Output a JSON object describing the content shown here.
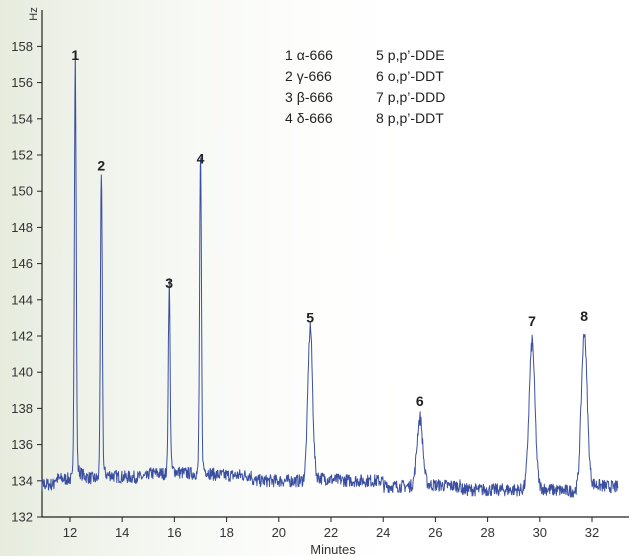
{
  "chart_data": {
    "type": "line",
    "xlabel": "Minutes",
    "ylabel": "Hz",
    "xlim": [
      10.5,
      33
    ],
    "ylim": [
      132,
      159
    ],
    "x_ticks": [
      12,
      14,
      16,
      18,
      20,
      22,
      24,
      26,
      28,
      30,
      32
    ],
    "y_ticks": [
      132,
      134,
      136,
      138,
      140,
      142,
      144,
      146,
      148,
      150,
      152,
      154,
      156,
      158
    ],
    "baseline": 134,
    "grid": false,
    "colors": {
      "trace": "#3b4fa0",
      "axis": "#222222",
      "background_tint": "#e9eee2"
    },
    "peaks": [
      {
        "label": "1",
        "x": 12.2,
        "y": 156.8
      },
      {
        "label": "2",
        "x": 13.2,
        "y": 150.7
      },
      {
        "label": "3",
        "x": 15.8,
        "y": 144.2
      },
      {
        "label": "4",
        "x": 17.0,
        "y": 151.1
      },
      {
        "label": "5",
        "x": 21.2,
        "y": 142.3
      },
      {
        "label": "6",
        "x": 25.4,
        "y": 137.7
      },
      {
        "label": "7",
        "x": 29.7,
        "y": 142.1
      },
      {
        "label": "8",
        "x": 31.7,
        "y": 142.4
      }
    ],
    "legend": [
      {
        "num": "1",
        "name": "α-666"
      },
      {
        "num": "2",
        "name": "γ-666"
      },
      {
        "num": "3",
        "name": "β-666"
      },
      {
        "num": "4",
        "name": "δ-666"
      },
      {
        "num": "5",
        "name": "p,p’-DDE"
      },
      {
        "num": "6",
        "name": "o,p’-DDT"
      },
      {
        "num": "7",
        "name": "p,p’-DDD"
      },
      {
        "num": "8",
        "name": "p,p’-DDT"
      }
    ]
  }
}
